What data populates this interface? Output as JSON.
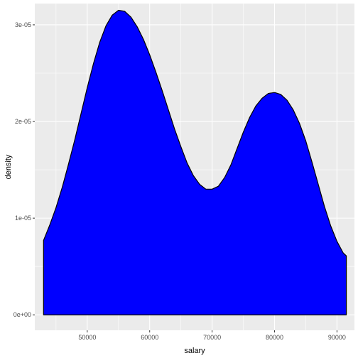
{
  "chart_data": {
    "type": "area",
    "title": "",
    "xlabel": "salary",
    "ylabel": "density",
    "xlim": [
      41600,
      92800
    ],
    "ylim": [
      -1.6e-06,
      3.22e-05
    ],
    "x_ticks": [
      50000,
      60000,
      70000,
      80000,
      90000
    ],
    "x_tick_labels": [
      "50000",
      "60000",
      "70000",
      "80000",
      "90000"
    ],
    "x_minor_ticks": [
      45000,
      55000,
      65000,
      75000,
      85000
    ],
    "y_ticks": [
      0,
      1e-05,
      2e-05,
      3e-05
    ],
    "y_tick_labels": [
      "0e+00",
      "1e-05",
      "2e-05",
      "3e-05"
    ],
    "y_minor_ticks": [
      5e-06,
      1.5e-05,
      2.5e-05
    ],
    "grid": true,
    "legend": "none",
    "fill_color": "#0000ff",
    "line_color": "#000000",
    "panel_color": "#ebebeb",
    "grid_color": "#ffffff",
    "series": [
      {
        "x": [
          43000,
          44000,
          45000,
          46000,
          47000,
          48000,
          49000,
          50000,
          51000,
          52000,
          53000,
          54000,
          55000,
          56000,
          57000,
          58000,
          59000,
          60000,
          61000,
          62000,
          63000,
          64000,
          65000,
          66000,
          67000,
          68000,
          69000,
          70000,
          71000,
          72000,
          73000,
          74000,
          75000,
          76000,
          77000,
          78000,
          79000,
          80000,
          81000,
          82000,
          83000,
          84000,
          85000,
          86000,
          87000,
          88000,
          89000,
          90000,
          91000,
          91500
        ],
        "y": [
          7.7e-06,
          9.3e-06,
          1.11e-05,
          1.32e-05,
          1.56e-05,
          1.81e-05,
          2.08e-05,
          2.35e-05,
          2.6e-05,
          2.82e-05,
          2.99e-05,
          3.1e-05,
          3.15e-05,
          3.14e-05,
          3.08e-05,
          2.98e-05,
          2.85e-05,
          2.69e-05,
          2.51e-05,
          2.32e-05,
          2.12e-05,
          1.92e-05,
          1.74e-05,
          1.57e-05,
          1.44e-05,
          1.35e-05,
          1.3e-05,
          1.3e-05,
          1.33e-05,
          1.42e-05,
          1.55e-05,
          1.72e-05,
          1.89e-05,
          2.04e-05,
          2.16e-05,
          2.24e-05,
          2.29e-05,
          2.3e-05,
          2.28e-05,
          2.22e-05,
          2.12e-05,
          1.98e-05,
          1.8e-05,
          1.58e-05,
          1.35e-05,
          1.12e-05,
          9.2e-06,
          7.6e-06,
          6.4e-06,
          6.1e-06
        ]
      }
    ]
  }
}
